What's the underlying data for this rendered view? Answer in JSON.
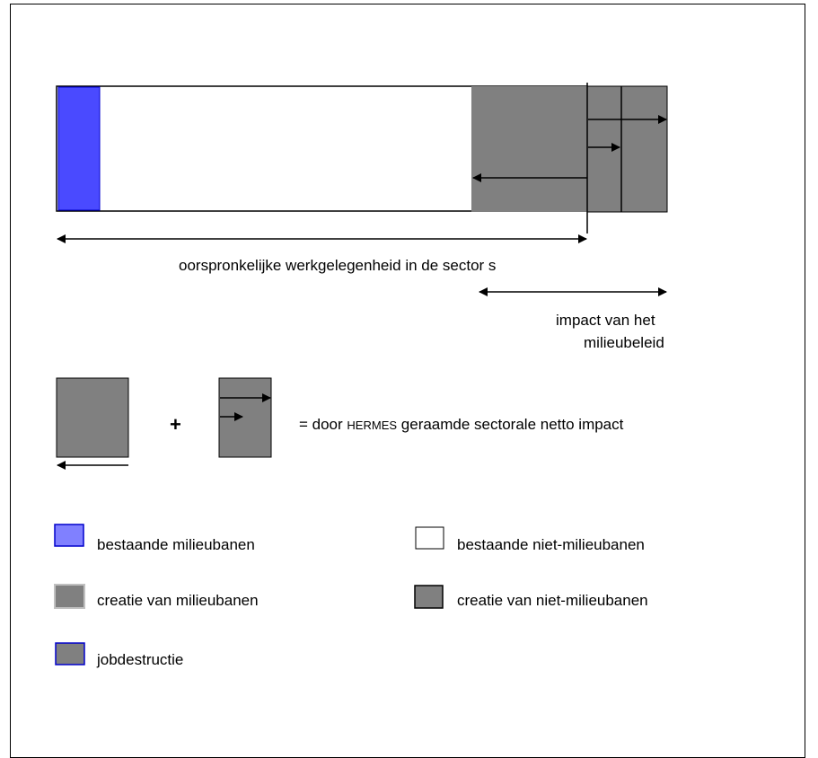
{
  "diagram": {
    "main_caption": "oorspronkelijke werkgelegenheid in de sector s",
    "impact_caption_line1": "impact van het",
    "impact_caption_line2": "milieubeleid",
    "plus_sign": "+",
    "equation_prefix": "= door",
    "equation_model": "HERMES",
    "equation_suffix": "geraamde sectorale netto impact"
  },
  "legend": {
    "items": [
      {
        "label": "bestaande milieubanen",
        "fill": "#8080ff",
        "border": "#0000cc"
      },
      {
        "label": "bestaande niet-milieubanen",
        "fill": "#ffffff",
        "border": "#000000"
      },
      {
        "label": "creatie van milieubanen",
        "fill": "#808080",
        "border": "#c0c0c0"
      },
      {
        "label": "creatie van niet-milieubanen",
        "fill": "#808080",
        "border": "#000000"
      },
      {
        "label": "jobdestructie",
        "fill": "#808080",
        "border": "#0000cc"
      }
    ]
  },
  "colors": {
    "environment_jobs": "#4a4aff",
    "grey_block": "#808080",
    "outline": "#000000"
  }
}
